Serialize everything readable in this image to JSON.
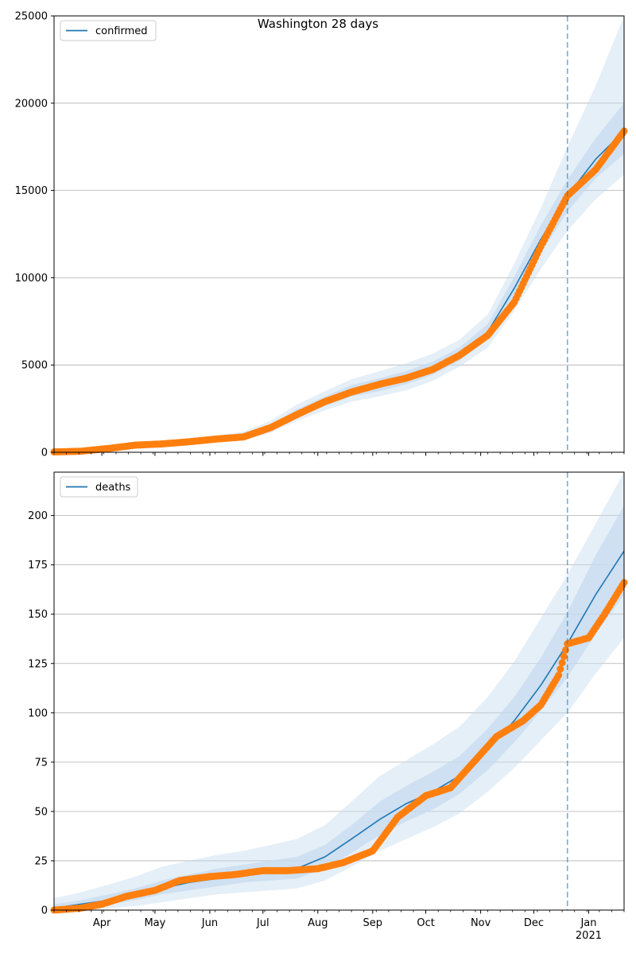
{
  "figure": {
    "title": "Washington 28 days"
  },
  "chart_data": [
    {
      "type": "line",
      "title": "Washington 28 days",
      "legend": {
        "label": "confirmed",
        "placement": "top-left"
      },
      "grid": "y",
      "ylim": [
        0,
        25000
      ],
      "y_ticks": [
        0,
        5000,
        10000,
        15000,
        20000,
        25000
      ],
      "y_tick_labels": [
        "0",
        "5000",
        "10000",
        "15000",
        "20000",
        "25000"
      ],
      "xlim": [
        "2020-03-05",
        "2021-01-21"
      ],
      "x_tick_labels": [],
      "forecast_start": "2020-12-20",
      "colors": {
        "model": "#1f77b4",
        "observed": "#ff7f0e",
        "band": "#c6dbef"
      },
      "model": {
        "x": [
          "2020-03-05",
          "2020-03-20",
          "2020-04-05",
          "2020-04-20",
          "2020-05-05",
          "2020-05-20",
          "2020-06-05",
          "2020-06-20",
          "2020-07-05",
          "2020-07-20",
          "2020-08-05",
          "2020-08-20",
          "2020-09-05",
          "2020-09-20",
          "2020-10-05",
          "2020-10-20",
          "2020-11-05",
          "2020-11-20",
          "2020-12-05",
          "2020-12-20",
          "2021-01-05",
          "2021-01-21"
        ],
        "y": [
          10,
          60,
          230,
          400,
          480,
          600,
          760,
          900,
          1400,
          2200,
          2900,
          3500,
          3850,
          4250,
          4800,
          5600,
          6900,
          9400,
          12200,
          14700,
          16800,
          18400
        ],
        "band_inner": [
          [
            0,
            40
          ],
          [
            40,
            90
          ],
          [
            190,
            270
          ],
          [
            340,
            460
          ],
          [
            420,
            550
          ],
          [
            530,
            680
          ],
          [
            680,
            850
          ],
          [
            800,
            1020
          ],
          [
            1250,
            1580
          ],
          [
            2000,
            2450
          ],
          [
            2650,
            3200
          ],
          [
            3200,
            3850
          ],
          [
            3500,
            4250
          ],
          [
            3900,
            4650
          ],
          [
            4450,
            5200
          ],
          [
            5250,
            6000
          ],
          [
            6450,
            7350
          ],
          [
            8750,
            10050
          ],
          [
            11400,
            13000
          ],
          [
            13800,
            15600
          ],
          [
            15700,
            18000
          ],
          [
            17100,
            20000
          ]
        ],
        "band_outer": [
          [
            0,
            80
          ],
          [
            20,
            140
          ],
          [
            140,
            340
          ],
          [
            270,
            540
          ],
          [
            340,
            650
          ],
          [
            440,
            800
          ],
          [
            580,
            980
          ],
          [
            680,
            1180
          ],
          [
            1100,
            1800
          ],
          [
            1780,
            2720
          ],
          [
            2400,
            3500
          ],
          [
            2900,
            4180
          ],
          [
            3200,
            4650
          ],
          [
            3550,
            5100
          ],
          [
            4100,
            5650
          ],
          [
            4900,
            6450
          ],
          [
            6000,
            7900
          ],
          [
            8100,
            10800
          ],
          [
            10500,
            14000
          ],
          [
            12700,
            17500
          ],
          [
            14500,
            21000
          ],
          [
            15900,
            25000
          ]
        ]
      },
      "observed": {
        "x": [
          "2020-03-05",
          "2020-03-20",
          "2020-04-05",
          "2020-04-20",
          "2020-05-05",
          "2020-05-20",
          "2020-06-05",
          "2020-06-20",
          "2020-07-05",
          "2020-07-20",
          "2020-08-05",
          "2020-08-20",
          "2020-09-05",
          "2020-09-20",
          "2020-10-05",
          "2020-10-20",
          "2020-11-05",
          "2020-11-20",
          "2020-12-05",
          "2020-12-20",
          "2021-01-05",
          "2021-01-21"
        ],
        "y": [
          20,
          60,
          220,
          410,
          480,
          600,
          760,
          880,
          1400,
          2150,
          2900,
          3450,
          3900,
          4250,
          4750,
          5550,
          6700,
          8600,
          11800,
          14700,
          16200,
          18400
        ]
      }
    },
    {
      "type": "line",
      "legend": {
        "label": "deaths",
        "placement": "top-left"
      },
      "grid": "y",
      "ylim": [
        0,
        222
      ],
      "y_ticks": [
        0,
        25,
        50,
        75,
        100,
        125,
        150,
        175,
        200
      ],
      "y_tick_labels": [
        "0",
        "25",
        "50",
        "75",
        "100",
        "125",
        "150",
        "175",
        "200"
      ],
      "xlim": [
        "2020-03-05",
        "2021-01-21"
      ],
      "x_ticks": [
        "2020-04-01",
        "2020-05-01",
        "2020-06-01",
        "2020-07-01",
        "2020-08-01",
        "2020-09-01",
        "2020-10-01",
        "2020-11-01",
        "2020-12-01",
        "2021-01-01"
      ],
      "x_tick_labels": [
        "Apr",
        "May",
        "Jun",
        "Jul",
        "Aug",
        "Sep",
        "Oct",
        "Nov",
        "Dec",
        "Jan\n2021"
      ],
      "forecast_start": "2020-12-20",
      "colors": {
        "model": "#1f77b4",
        "observed": "#ff7f0e",
        "band": "#c6dbef"
      },
      "model": {
        "x": [
          "2020-03-05",
          "2020-03-20",
          "2020-04-05",
          "2020-04-20",
          "2020-05-05",
          "2020-05-20",
          "2020-06-05",
          "2020-06-20",
          "2020-07-05",
          "2020-07-20",
          "2020-08-05",
          "2020-08-20",
          "2020-09-05",
          "2020-09-20",
          "2020-10-05",
          "2020-10-20",
          "2020-11-05",
          "2020-11-20",
          "2020-12-05",
          "2020-12-20",
          "2021-01-05",
          "2021-01-21"
        ],
        "y": [
          1,
          3,
          5,
          8,
          11,
          14,
          16,
          18,
          19,
          21,
          27,
          36,
          46,
          54,
          60,
          68,
          81,
          96,
          114,
          135,
          160,
          182
        ],
        "band_inner": [
          [
            0,
            3
          ],
          [
            1,
            5
          ],
          [
            3,
            8
          ],
          [
            5,
            11
          ],
          [
            8,
            15
          ],
          [
            10,
            18
          ],
          [
            12,
            21
          ],
          [
            14,
            23
          ],
          [
            15,
            25
          ],
          [
            16,
            27
          ],
          [
            21,
            33
          ],
          [
            29,
            43
          ],
          [
            38,
            55
          ],
          [
            45,
            63
          ],
          [
            51,
            70
          ],
          [
            59,
            78
          ],
          [
            71,
            92
          ],
          [
            85,
            108
          ],
          [
            101,
            128
          ],
          [
            118,
            151
          ],
          [
            140,
            180
          ],
          [
            160,
            205
          ]
        ],
        "band_outer": [
          [
            0,
            6
          ],
          [
            0,
            9
          ],
          [
            1,
            13
          ],
          [
            2,
            17
          ],
          [
            4,
            22
          ],
          [
            6,
            25
          ],
          [
            8,
            28
          ],
          [
            9,
            30
          ],
          [
            10,
            33
          ],
          [
            11,
            36
          ],
          [
            15,
            43
          ],
          [
            22,
            55
          ],
          [
            30,
            68
          ],
          [
            36,
            76
          ],
          [
            42,
            84
          ],
          [
            49,
            93
          ],
          [
            60,
            108
          ],
          [
            72,
            126
          ],
          [
            86,
            148
          ],
          [
            100,
            170
          ],
          [
            120,
            196
          ],
          [
            138,
            222
          ]
        ]
      },
      "observed": {
        "x": [
          "2020-03-05",
          "2020-03-20",
          "2020-04-01",
          "2020-04-15",
          "2020-05-01",
          "2020-05-15",
          "2020-06-01",
          "2020-06-15",
          "2020-07-01",
          "2020-07-15",
          "2020-08-01",
          "2020-08-15",
          "2020-09-01",
          "2020-09-15",
          "2020-10-01",
          "2020-10-15",
          "2020-11-01",
          "2020-11-10",
          "2020-11-25",
          "2020-12-05",
          "2020-12-15",
          "2020-12-20",
          "2021-01-01",
          "2021-01-10",
          "2021-01-21"
        ],
        "y": [
          0,
          1,
          3,
          7,
          10,
          15,
          17,
          18,
          20,
          20,
          21,
          24,
          30,
          47,
          58,
          62,
          79,
          88,
          96,
          104,
          119,
          135,
          138,
          150,
          166
        ]
      }
    }
  ]
}
